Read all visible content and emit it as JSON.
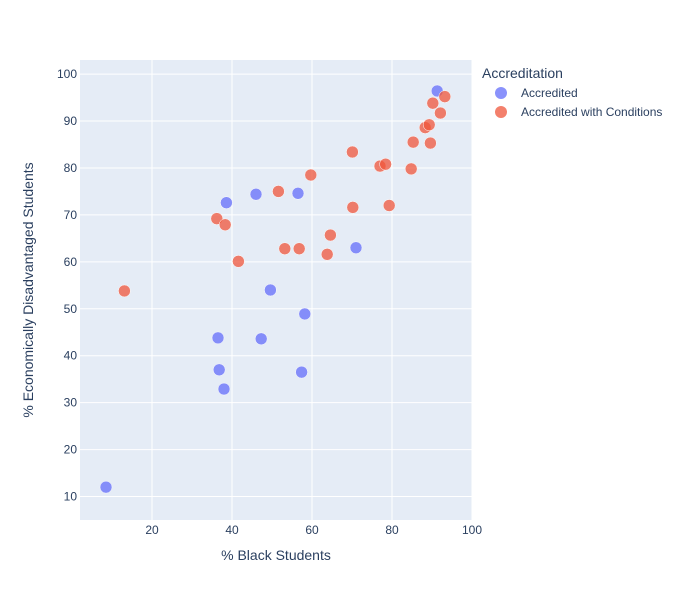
{
  "chart_data": {
    "type": "scatter",
    "title": "",
    "xlabel": "% Black Students",
    "ylabel": "% Economically Disadvantaged Students",
    "xlim": [
      2,
      100
    ],
    "ylim": [
      5,
      103
    ],
    "xticks": [
      20,
      40,
      60,
      80,
      100
    ],
    "yticks": [
      10,
      20,
      30,
      40,
      50,
      60,
      70,
      80,
      90,
      100
    ],
    "grid": true,
    "legend": {
      "title": "Accreditation",
      "position": "top-right-outside"
    },
    "series": [
      {
        "name": "Accredited",
        "color": "#636efa",
        "points": [
          [
            8.5,
            12.0
          ],
          [
            36.5,
            43.8
          ],
          [
            36.8,
            37.0
          ],
          [
            38.0,
            32.9
          ],
          [
            38.6,
            72.6
          ],
          [
            46.0,
            74.4
          ],
          [
            47.3,
            43.6
          ],
          [
            49.6,
            54.0
          ],
          [
            56.5,
            74.6
          ],
          [
            57.4,
            36.5
          ],
          [
            58.2,
            48.9
          ],
          [
            71.0,
            63.0
          ],
          [
            91.3,
            96.4
          ]
        ]
      },
      {
        "name": "Accredited with Conditions",
        "color": "#ef553b",
        "points": [
          [
            13.1,
            53.8
          ],
          [
            36.2,
            69.2
          ],
          [
            38.3,
            67.9
          ],
          [
            41.6,
            60.1
          ],
          [
            51.6,
            75.0
          ],
          [
            53.2,
            62.8
          ],
          [
            56.8,
            62.8
          ],
          [
            59.7,
            78.5
          ],
          [
            63.8,
            61.6
          ],
          [
            64.6,
            65.7
          ],
          [
            70.2,
            71.6
          ],
          [
            70.1,
            83.4
          ],
          [
            77.0,
            80.4
          ],
          [
            78.4,
            80.8
          ],
          [
            79.3,
            72.0
          ],
          [
            84.8,
            79.8
          ],
          [
            85.3,
            85.5
          ],
          [
            88.3,
            88.6
          ],
          [
            89.3,
            89.2
          ],
          [
            89.6,
            85.3
          ],
          [
            90.2,
            93.8
          ],
          [
            92.1,
            91.7
          ],
          [
            93.2,
            95.2
          ]
        ]
      }
    ]
  }
}
